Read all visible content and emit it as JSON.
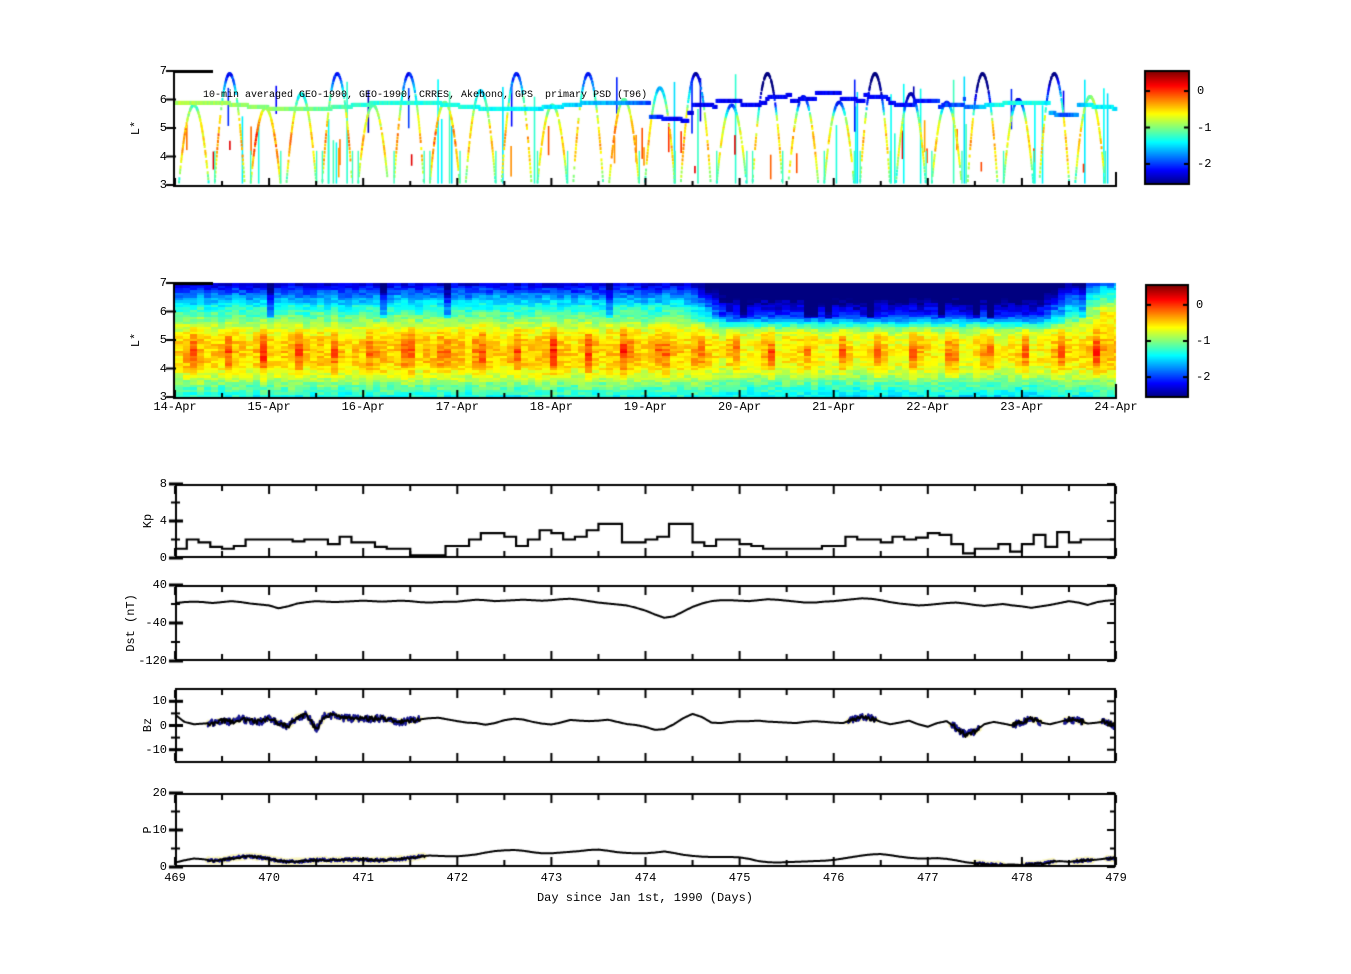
{
  "figure": {
    "title_annotation": "10-min averaged GEO-1990, GEO-1990, CRRES, Akebono, GPS  primary PSD (T96)",
    "xaxis": {
      "label": "Day since Jan 1st, 1990 (Days)",
      "range": [
        469,
        479
      ],
      "tick_labels": [
        "469",
        "470",
        "471",
        "472",
        "473",
        "474",
        "475",
        "476",
        "477",
        "478",
        "479"
      ]
    },
    "date_axis": {
      "tick_days": [
        469,
        470,
        471,
        472,
        473,
        474,
        475,
        476,
        477,
        478,
        479
      ],
      "tick_labels": [
        "14-Apr",
        "15-Apr",
        "16-Apr",
        "17-Apr",
        "18-Apr",
        "19-Apr",
        "20-Apr",
        "21-Apr",
        "22-Apr",
        "23-Apr",
        "24-Apr"
      ]
    }
  },
  "chart_data": [
    {
      "id": "psd_scatter",
      "type": "scatter",
      "title": "10-min averaged GEO-1990, GEO-1990, CRRES, Akebono, GPS  primary PSD (T96)",
      "ylabel": "L*",
      "ylim": [
        3,
        7
      ],
      "yticks": [
        7,
        6,
        5,
        4,
        3
      ],
      "ytick_labels": [
        "7",
        "6",
        "5",
        "4",
        "3"
      ],
      "colorbar": {
        "ticks": [
          0,
          -1,
          -2
        ],
        "labels": [
          "0",
          "-1",
          "-2"
        ],
        "range": [
          -2.55,
          0.55
        ]
      },
      "geo_band": {
        "l_base": 5.78,
        "value_points": [
          [
            469,
            -0.85
          ],
          [
            470.3,
            -1.0
          ],
          [
            471,
            -1.25
          ],
          [
            472,
            -1.3
          ],
          [
            473,
            -1.45
          ],
          [
            473.8,
            -1.7
          ],
          [
            474.3,
            -2.2
          ],
          [
            476.8,
            -2.15
          ],
          [
            477.4,
            -1.9
          ],
          [
            477.75,
            -1.3
          ],
          [
            478.25,
            -1.35
          ],
          [
            478.45,
            -2.0
          ],
          [
            478.75,
            -1.35
          ],
          [
            479,
            -1.45
          ]
        ]
      },
      "orbit_arcs": {
        "start_day": 469.2,
        "period_days": 0.381,
        "half_width_days": 0.16,
        "peaks": [
          5.8,
          6.9,
          5.7,
          6.2,
          6.9,
          5.8,
          6.9,
          5.9,
          6.3,
          6.9,
          5.8,
          6.9,
          6.0,
          6.4,
          6.9,
          5.8,
          6.9,
          6.1,
          5.9,
          6.9,
          6.2,
          5.9,
          6.9,
          6.0,
          6.9,
          6.1
        ]
      },
      "spikes": {
        "count": 70,
        "seed": 7
      }
    },
    {
      "id": "psd_spectrogram",
      "type": "heatmap",
      "ylabel": "L*",
      "ylim": [
        3,
        7
      ],
      "yticks": [
        7,
        6,
        5,
        4,
        3
      ],
      "ytick_labels": [
        "7",
        "6",
        "5",
        "4",
        "3"
      ],
      "colorbar": {
        "ticks": [
          0,
          -1,
          -2
        ],
        "labels": [
          "0",
          "-1",
          "-2"
        ],
        "range": [
          -2.55,
          0.55
        ]
      },
      "field": {
        "l_nodes": [
          3,
          3.4,
          3.8,
          4.2,
          4.6,
          5,
          5.4,
          5.8,
          6.2,
          6.6,
          7
        ],
        "base_values": [
          -1.35,
          -1.05,
          -0.7,
          -0.5,
          -0.45,
          -0.5,
          -0.7,
          -1.05,
          -1.35,
          -1.8,
          -2.3
        ],
        "pulse": {
          "period_days": 0.385,
          "phase_day": 469.03,
          "amplitude": 0.5,
          "l_center": 4.6,
          "l_width": 1.1
        },
        "storm": {
          "start": 474.4,
          "full": 474.85,
          "end": 478.1,
          "recover": 478.8,
          "high_l_delta": -0.85,
          "mid_delta": -0.12,
          "l_edge": 5.2,
          "l_edge_width": 0.8
        },
        "noise_amp": 0.16,
        "block_dt": 0.075,
        "block_dl": 0.085
      }
    },
    {
      "id": "kp",
      "type": "line",
      "ylabel": "Kp",
      "ylim": [
        0,
        8
      ],
      "yticks": [
        8,
        4,
        0
      ],
      "ytick_labels": [
        "8",
        "4",
        "0"
      ],
      "step_hours": 3,
      "t_start": 469,
      "values": [
        1.0,
        2.0,
        1.7,
        1.2,
        1.0,
        1.3,
        2.0,
        2.0,
        2.0,
        2.0,
        1.8,
        2.0,
        2.0,
        1.5,
        2.3,
        1.7,
        1.7,
        1.2,
        1.0,
        1.0,
        0.3,
        0.3,
        0.3,
        1.3,
        1.3,
        2.0,
        2.7,
        2.7,
        2.3,
        1.3,
        2.0,
        3.0,
        2.7,
        2.0,
        2.3,
        3.0,
        3.7,
        3.7,
        1.7,
        1.7,
        2.0,
        2.3,
        3.7,
        3.7,
        1.7,
        1.3,
        2.0,
        2.0,
        1.5,
        1.3,
        1.0,
        1.0,
        1.0,
        1.0,
        1.0,
        1.3,
        1.3,
        2.3,
        2.0,
        2.0,
        1.7,
        2.3,
        2.0,
        2.2,
        2.7,
        2.5,
        1.5,
        0.5,
        1.0,
        1.0,
        1.5,
        0.7,
        1.5,
        2.5,
        1.2,
        2.8,
        1.7,
        2.0,
        2.0,
        2.0
      ]
    },
    {
      "id": "dst",
      "type": "line",
      "ylabel": "Dst (nT)",
      "ylim": [
        -120,
        40
      ],
      "yticks": [
        40,
        -40,
        -120
      ],
      "ytick_labels": [
        "40",
        "-40",
        "-120"
      ],
      "t_start": 469,
      "t_step": 0.1,
      "values": [
        2,
        4,
        5,
        4,
        2,
        4,
        6,
        4,
        1,
        -1,
        -3,
        -9,
        -5,
        1,
        4,
        6,
        5,
        4,
        5,
        6,
        7,
        6,
        5,
        6,
        7,
        6,
        4,
        3,
        4,
        5,
        5,
        7,
        9,
        8,
        6,
        7,
        8,
        9,
        8,
        7,
        8,
        10,
        11,
        9,
        6,
        3,
        1,
        -1,
        -3,
        -8,
        -14,
        -22,
        -29,
        -26,
        -16,
        -6,
        1,
        6,
        8,
        8,
        7,
        6,
        8,
        10,
        9,
        7,
        5,
        3,
        3,
        5,
        6,
        8,
        10,
        12,
        11,
        8,
        4,
        1,
        -1,
        -3,
        -2,
        0,
        2,
        3,
        1,
        -2,
        -4,
        -2,
        0,
        -3,
        -5,
        -8,
        -5,
        -2,
        2,
        6,
        3,
        -2,
        4,
        7,
        8
      ]
    },
    {
      "id": "bz",
      "type": "line",
      "ylabel": "Bz",
      "ylim": [
        -15.5,
        15.5
      ],
      "yticks": [
        10,
        0,
        -10
      ],
      "ytick_labels": [
        "10",
        "0",
        "-10"
      ],
      "t_start": 469,
      "t_step": 0.1,
      "values": [
        4.5,
        1.5,
        0.5,
        0.8,
        1.0,
        2.0,
        1.5,
        2.8,
        2.0,
        1.5,
        3.0,
        1.0,
        -0.5,
        3.5,
        4.5,
        -1.5,
        4.5,
        4.0,
        3.0,
        2.8,
        2.8,
        2.8,
        3.0,
        2.0,
        1.5,
        2.0,
        2.5,
        3.0,
        3.2,
        2.5,
        1.8,
        1.2,
        1.0,
        0.3,
        1.0,
        2.2,
        2.8,
        2.5,
        1.5,
        0.8,
        0.4,
        1.2,
        2.3,
        2.0,
        1.8,
        2.0,
        2.4,
        1.5,
        0.6,
        0.2,
        -0.6,
        -1.8,
        -1.5,
        0.5,
        3.0,
        4.8,
        3.5,
        1.2,
        1.0,
        1.5,
        1.8,
        1.8,
        2.0,
        1.6,
        1.4,
        1.2,
        1.0,
        1.5,
        1.8,
        1.5,
        1.2,
        1.0,
        2.5,
        3.3,
        3.0,
        1.5,
        0.5,
        1.2,
        2.0,
        0.5,
        -0.5,
        1.0,
        1.8,
        -1.0,
        -3.8,
        -2.5,
        0.5,
        1.5,
        0.8,
        0.0,
        1.5,
        2.8,
        1.2,
        0.5,
        1.5,
        2.5,
        2.0,
        0.8,
        1.2,
        1.8,
        -0.5
      ],
      "highlight_color": "#191994",
      "highlight_segments": [
        [
          469.35,
          471.6
        ],
        [
          476.15,
          476.45
        ],
        [
          477.25,
          477.55
        ],
        [
          477.9,
          478.2
        ],
        [
          478.45,
          478.65
        ],
        [
          478.85,
          479.0
        ]
      ]
    },
    {
      "id": "p",
      "type": "line",
      "ylabel": "P",
      "ylim": [
        0,
        20
      ],
      "yticks": [
        20,
        10,
        0
      ],
      "ytick_labels": [
        "20",
        "10",
        "0"
      ],
      "t_start": 469,
      "t_step": 0.1,
      "values": [
        1.2,
        1.8,
        2.3,
        2.1,
        1.7,
        1.9,
        2.3,
        2.7,
        2.9,
        2.6,
        2.2,
        1.7,
        1.4,
        1.5,
        1.7,
        1.9,
        1.9,
        1.8,
        1.9,
        2.0,
        2.0,
        1.9,
        1.8,
        2.0,
        2.2,
        2.4,
        2.8,
        3.1,
        3.0,
        2.9,
        2.9,
        3.1,
        3.4,
        3.9,
        4.3,
        4.5,
        4.6,
        4.4,
        4.0,
        3.7,
        3.7,
        3.9,
        4.1,
        4.3,
        4.6,
        4.7,
        4.4,
        4.0,
        3.8,
        3.7,
        3.7,
        3.9,
        4.2,
        3.8,
        3.3,
        3.0,
        2.8,
        2.7,
        2.7,
        2.7,
        2.6,
        2.2,
        1.6,
        1.3,
        1.2,
        1.3,
        1.4,
        1.5,
        1.6,
        1.7,
        1.9,
        2.3,
        2.7,
        3.1,
        3.4,
        3.5,
        3.2,
        2.8,
        2.5,
        2.3,
        2.3,
        2.4,
        2.2,
        1.8,
        1.3,
        1.0,
        0.8,
        0.6,
        0.6,
        0.7,
        0.5,
        0.7,
        0.9,
        1.3,
        1.6,
        1.4,
        1.6,
        1.8,
        2.0,
        2.3,
        2.4
      ],
      "highlight_color": "#191994",
      "highlight_segments": [
        [
          469.35,
          471.65
        ],
        [
          477.5,
          477.8
        ],
        [
          478.0,
          478.35
        ],
        [
          478.55,
          478.75
        ],
        [
          478.9,
          479.0
        ]
      ]
    }
  ]
}
